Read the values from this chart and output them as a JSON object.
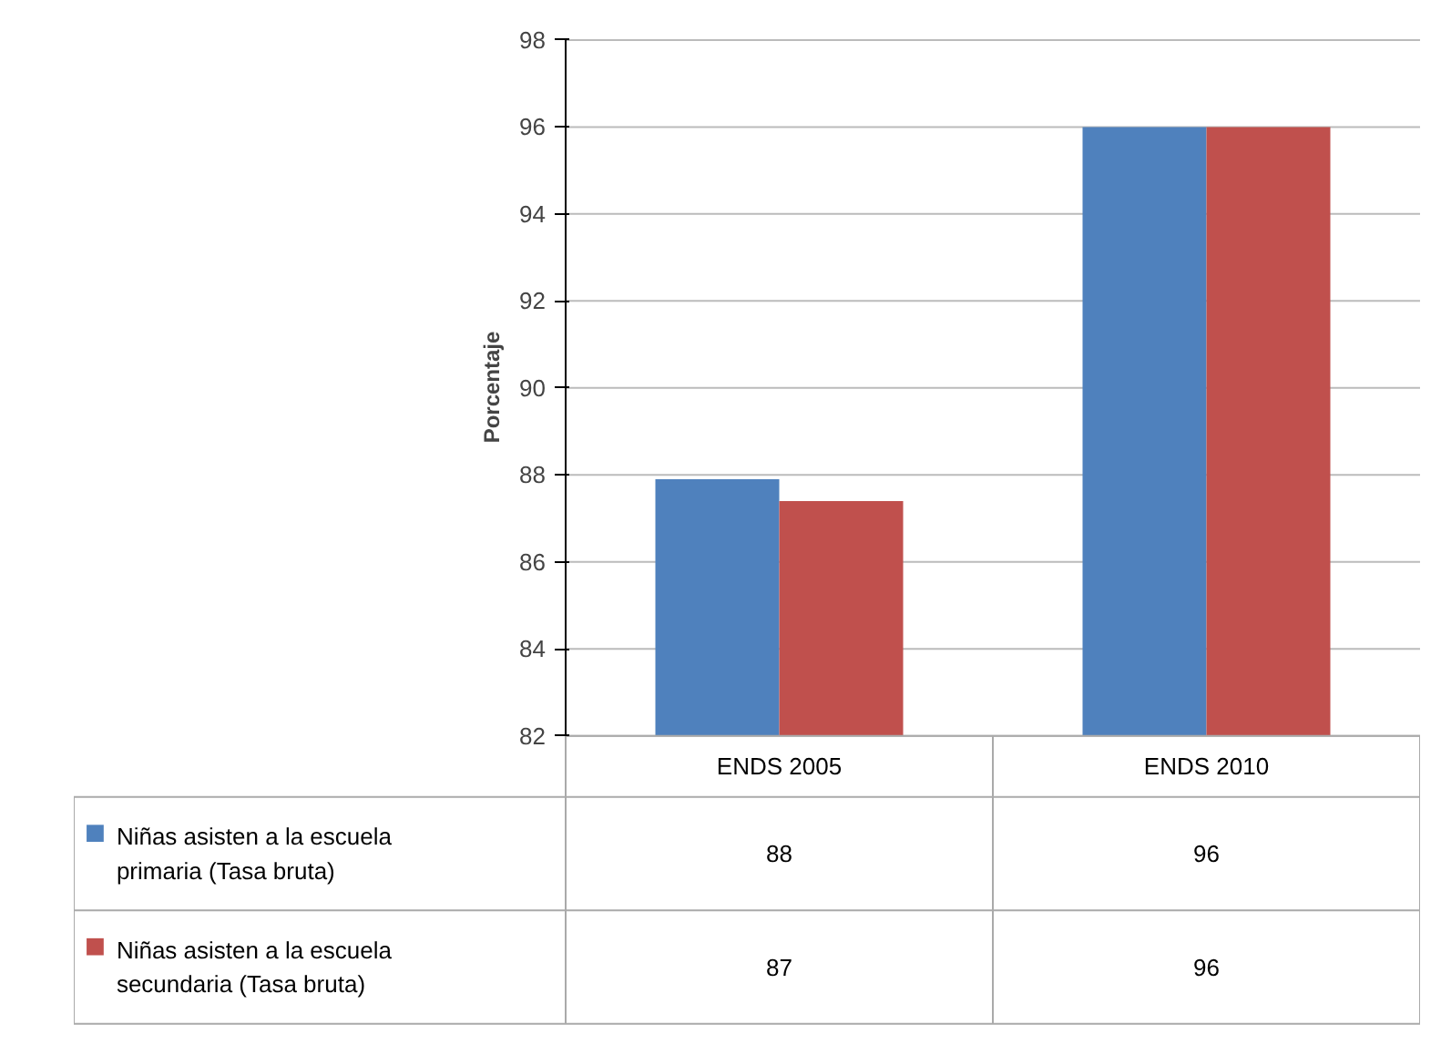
{
  "chart_data": {
    "type": "bar",
    "ylabel": "Porcentaje",
    "categories": [
      "ENDS 2005",
      "ENDS 2010"
    ],
    "series": [
      {
        "name": "Niñas asisten a la escuela primaria (Tasa bruta)",
        "color": "#4f81bd",
        "values": [
          87.9,
          96
        ],
        "value_labels": [
          "88",
          "96"
        ]
      },
      {
        "name": "Niñas asisten a la escuela secundaria (Tasa bruta)",
        "color": "#c0504d",
        "values": [
          87.4,
          96
        ],
        "value_labels": [
          "87",
          "96"
        ]
      }
    ],
    "ylim": [
      82,
      98
    ],
    "yticks": [
      82,
      84,
      86,
      88,
      90,
      92,
      94,
      96,
      98
    ],
    "grid": "y",
    "legend": "bottom"
  }
}
